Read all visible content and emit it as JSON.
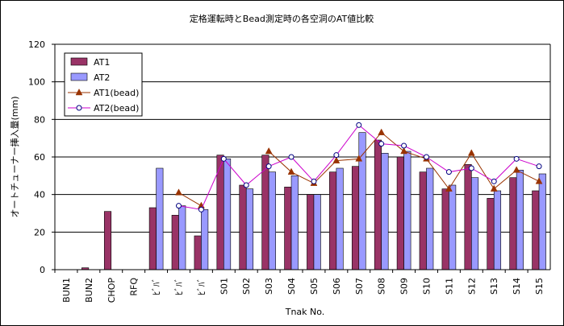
{
  "chart_data": {
    "type": "bar",
    "title": "定格運転時とBead測定時の各空洞のAT値比較",
    "xlabel": "Tnak No.",
    "ylabel": "オートチューナー挿入量(mm)",
    "ylim": [
      0,
      120
    ],
    "yticks": [
      "0",
      "20",
      "40",
      "60",
      "80",
      "100",
      "120"
    ],
    "grid": true,
    "legend_position": "top-left",
    "categories": [
      "BUN1",
      "BUN2",
      "CHOP",
      "RFQ",
      "ﾋﾞﾊﾞ",
      "ﾋﾞﾊﾞ",
      "ﾋﾞﾊﾞ",
      "S01",
      "S02",
      "S03",
      "S04",
      "S05",
      "S06",
      "S07",
      "S08",
      "S09",
      "S10",
      "S11",
      "S12",
      "S13",
      "S14",
      "S15"
    ],
    "series": [
      {
        "name": "AT1",
        "kind": "bar",
        "color": "#993366",
        "values": [
          0,
          1,
          31,
          0,
          33,
          29,
          18,
          61,
          45,
          61,
          44,
          40,
          52,
          55,
          69,
          60,
          52,
          43,
          56,
          38,
          49,
          42
        ]
      },
      {
        "name": "AT2",
        "kind": "bar",
        "color": "#9999ff",
        "values": [
          0,
          0,
          0,
          0,
          54,
          34,
          32,
          59,
          43,
          52,
          50,
          40,
          54,
          73,
          62,
          63,
          54,
          45,
          49,
          42,
          53,
          51
        ]
      },
      {
        "name": "AT1(bead)",
        "kind": "line",
        "color": "#993300",
        "marker": "triangle",
        "values": [
          null,
          null,
          null,
          null,
          null,
          41,
          34,
          null,
          null,
          63,
          52,
          46,
          58,
          59,
          73,
          63,
          59,
          43,
          62,
          43,
          53,
          47
        ]
      },
      {
        "name": "AT2(bead)",
        "kind": "line",
        "color": "#cc00cc",
        "marker": "circle",
        "values": [
          null,
          null,
          null,
          null,
          null,
          34,
          32,
          59,
          45,
          55,
          60,
          47,
          61,
          77,
          67,
          66,
          60,
          52,
          54,
          47,
          59,
          55
        ]
      }
    ]
  }
}
